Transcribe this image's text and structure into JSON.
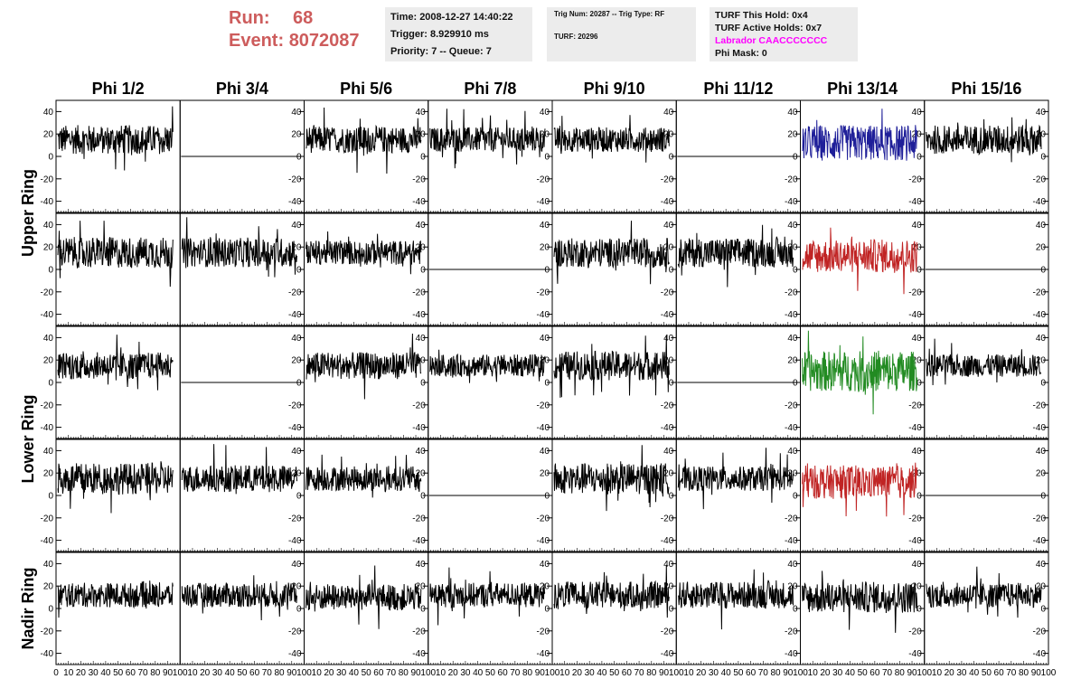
{
  "header": {
    "run_label": "Run:",
    "run_value": "68",
    "event_label": "Event:",
    "event_value": "8072087"
  },
  "info_box_1": {
    "time": "Time: 2008-12-27 14:40:22",
    "trigger": "Trigger: 8.929910 ms",
    "priority": "Priority: 7 -- Queue: 7"
  },
  "info_box_2": {
    "trig": "Trig Num: 20287 -- Trig Type: RF",
    "turf": "TURF: 20296"
  },
  "info_box_3": {
    "this_hold": "TURF This Hold: 0x4",
    "active_holds": "TURF Active Holds: 0x7",
    "labrador": "Labrador CAACCCCCCC",
    "phi_mask": "Phi Mask: 0"
  },
  "colors": {
    "header_red": "#cd5c5c",
    "box_bg": "#ececec",
    "magenta": "#ff00ff",
    "trace_default": "#000000",
    "trace_blue": "#1f1f99",
    "trace_red": "#c02424",
    "trace_green": "#228b22"
  },
  "chart_data": {
    "type": "line",
    "columns": [
      "Phi 1/2",
      "Phi 3/4",
      "Phi 5/6",
      "Phi 7/8",
      "Phi 9/10",
      "Phi 11/12",
      "Phi 13/14",
      "Phi 15/16"
    ],
    "ring_labels": [
      {
        "text": "Upper Ring",
        "rows": [
          0,
          1
        ]
      },
      {
        "text": "Lower Ring",
        "rows": [
          2,
          3
        ]
      },
      {
        "text": "Nadir Ring",
        "rows": [
          4
        ]
      }
    ],
    "ylim": [
      -50,
      50
    ],
    "xlim": [
      0,
      100
    ],
    "y_ticks": [
      -40,
      -20,
      0,
      20,
      40
    ],
    "x_ticks": [
      0,
      10,
      20,
      30,
      40,
      50,
      60,
      70,
      80,
      90,
      100
    ],
    "x_tick_labels": [
      "0",
      "10",
      "20",
      "30",
      "40",
      "50",
      "60",
      "70",
      "80",
      "90",
      "100"
    ],
    "waveform_samples": 260,
    "panels": [
      [
        {
          "flat": false,
          "mean": 15,
          "amp": 13,
          "color": "trace_default"
        },
        {
          "flat": true,
          "mean": 0,
          "amp": 0,
          "color": "trace_default"
        },
        {
          "flat": false,
          "mean": 15,
          "amp": 12,
          "color": "trace_default"
        },
        {
          "flat": false,
          "mean": 15,
          "amp": 11,
          "color": "trace_default"
        },
        {
          "flat": false,
          "mean": 15,
          "amp": 11,
          "color": "trace_default"
        },
        {
          "flat": true,
          "mean": 0,
          "amp": 0,
          "color": "trace_default"
        },
        {
          "flat": false,
          "mean": 12,
          "amp": 16,
          "color": "trace_blue"
        },
        {
          "flat": false,
          "mean": 15,
          "amp": 13,
          "color": "trace_default"
        }
      ],
      [
        {
          "flat": false,
          "mean": 15,
          "amp": 14,
          "color": "trace_default"
        },
        {
          "flat": false,
          "mean": 15,
          "amp": 13,
          "color": "trace_default"
        },
        {
          "flat": false,
          "mean": 15,
          "amp": 11,
          "color": "trace_default"
        },
        {
          "flat": true,
          "mean": 0,
          "amp": 0,
          "color": "trace_default"
        },
        {
          "flat": false,
          "mean": 15,
          "amp": 13,
          "color": "trace_default"
        },
        {
          "flat": false,
          "mean": 15,
          "amp": 13,
          "color": "trace_default"
        },
        {
          "flat": false,
          "mean": 12,
          "amp": 15,
          "color": "trace_red"
        },
        {
          "flat": true,
          "mean": 0,
          "amp": 0,
          "color": "trace_default"
        }
      ],
      [
        {
          "flat": false,
          "mean": 15,
          "amp": 12,
          "color": "trace_default"
        },
        {
          "flat": true,
          "mean": 0,
          "amp": 0,
          "color": "trace_default"
        },
        {
          "flat": false,
          "mean": 15,
          "amp": 12,
          "color": "trace_default"
        },
        {
          "flat": false,
          "mean": 15,
          "amp": 10,
          "color": "trace_default"
        },
        {
          "flat": false,
          "mean": 15,
          "amp": 13,
          "color": "trace_default"
        },
        {
          "flat": true,
          "mean": 0,
          "amp": 0,
          "color": "trace_default"
        },
        {
          "flat": false,
          "mean": 10,
          "amp": 18,
          "color": "trace_green"
        },
        {
          "flat": false,
          "mean": 15,
          "amp": 10,
          "color": "trace_default"
        }
      ],
      [
        {
          "flat": false,
          "mean": 15,
          "amp": 14,
          "color": "trace_default"
        },
        {
          "flat": false,
          "mean": 15,
          "amp": 12,
          "color": "trace_default"
        },
        {
          "flat": false,
          "mean": 15,
          "amp": 11,
          "color": "trace_default"
        },
        {
          "flat": true,
          "mean": 0,
          "amp": 0,
          "color": "trace_default"
        },
        {
          "flat": false,
          "mean": 15,
          "amp": 14,
          "color": "trace_default"
        },
        {
          "flat": false,
          "mean": 15,
          "amp": 11,
          "color": "trace_default"
        },
        {
          "flat": false,
          "mean": 12,
          "amp": 15,
          "color": "trace_red"
        },
        {
          "flat": true,
          "mean": 0,
          "amp": 0,
          "color": "trace_default"
        }
      ],
      [
        {
          "flat": false,
          "mean": 12,
          "amp": 11,
          "color": "trace_default"
        },
        {
          "flat": false,
          "mean": 12,
          "amp": 11,
          "color": "trace_default"
        },
        {
          "flat": false,
          "mean": 10,
          "amp": 12,
          "color": "trace_default"
        },
        {
          "flat": false,
          "mean": 12,
          "amp": 11,
          "color": "trace_default"
        },
        {
          "flat": false,
          "mean": 12,
          "amp": 12,
          "color": "trace_default"
        },
        {
          "flat": false,
          "mean": 12,
          "amp": 12,
          "color": "trace_default"
        },
        {
          "flat": false,
          "mean": 10,
          "amp": 14,
          "color": "trace_default"
        },
        {
          "flat": false,
          "mean": 12,
          "amp": 11,
          "color": "trace_default"
        }
      ]
    ]
  }
}
